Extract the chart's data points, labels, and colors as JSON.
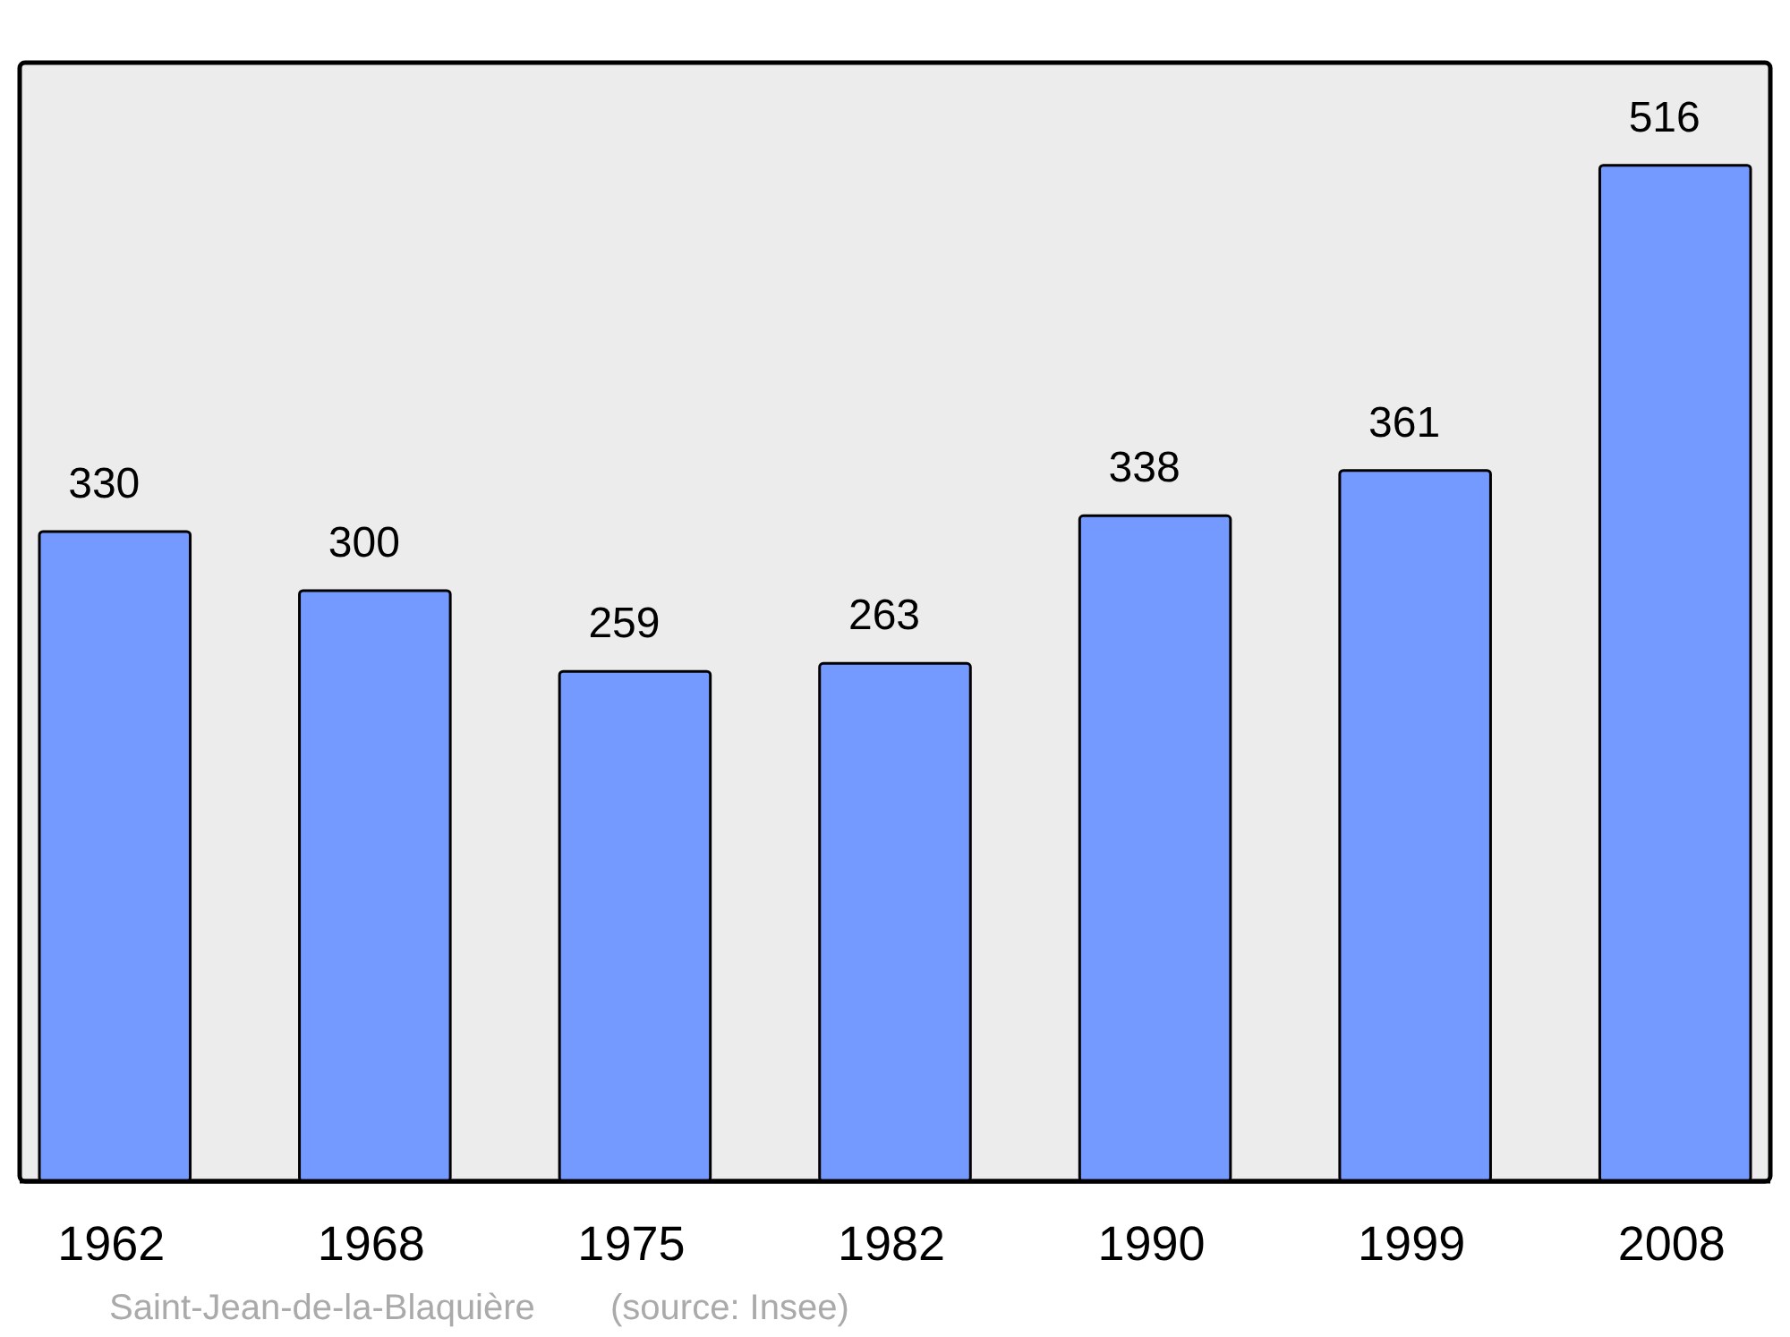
{
  "chart_data": {
    "type": "bar",
    "categories": [
      "1962",
      "1968",
      "1975",
      "1982",
      "1990",
      "1999",
      "2008"
    ],
    "values": [
      330,
      300,
      259,
      263,
      338,
      361,
      516
    ],
    "color": "#7499ff",
    "data_labels": true,
    "relative": false,
    "annotations": [
      "Saint-Jean-de-la-Blaquière",
      "(source: Insee)"
    ]
  }
}
